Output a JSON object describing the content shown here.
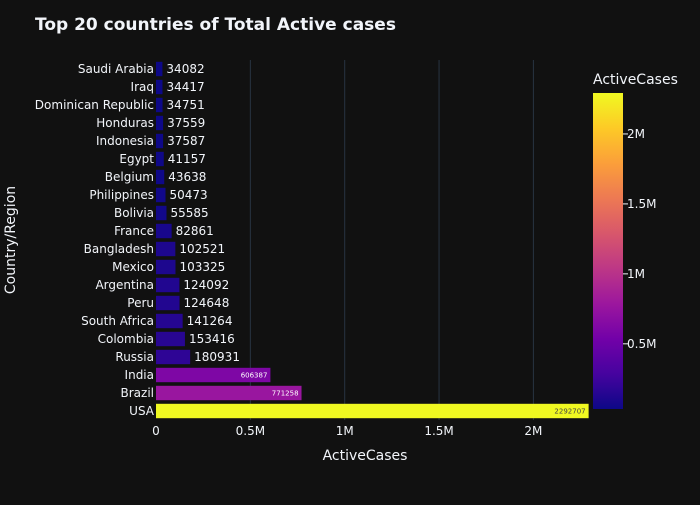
{
  "chart_data": {
    "type": "bar",
    "orientation": "horizontal",
    "title": "Top 20 countries of Total Active cases",
    "xlabel": "ActiveCases",
    "ylabel": "Country/Region",
    "xlim": [
      0,
      2300000
    ],
    "xticks": [
      {
        "value": 0,
        "label": "0"
      },
      {
        "value": 500000,
        "label": "0.5M"
      },
      {
        "value": 1000000,
        "label": "1M"
      },
      {
        "value": 1500000,
        "label": "1.5M"
      },
      {
        "value": 2000000,
        "label": "2M"
      }
    ],
    "grid": true,
    "categories": [
      "Saudi Arabia",
      "Iraq",
      "Dominican Republic",
      "Honduras",
      "Indonesia",
      "Egypt",
      "Belgium",
      "Philippines",
      "Bolivia",
      "France",
      "Bangladesh",
      "Mexico",
      "Argentina",
      "Peru",
      "South Africa",
      "Colombia",
      "Russia",
      "India",
      "Brazil",
      "USA"
    ],
    "values": [
      34082,
      34417,
      34751,
      37559,
      37587,
      41157,
      43638,
      50473,
      55585,
      82861,
      102521,
      103325,
      124092,
      124648,
      141264,
      153416,
      180931,
      606387,
      771258,
      2292707
    ],
    "data_labels": [
      "34082",
      "34417",
      "34751",
      "37559",
      "37587",
      "41157",
      "43638",
      "50473",
      "55585",
      "82861",
      "102521",
      "103325",
      "124092",
      "124648",
      "141264",
      "153416",
      "180931",
      "606387",
      "771258",
      "2292707"
    ],
    "colorscale": "Plasma",
    "colorbar": {
      "title": "ActiveCases",
      "range": [
        34082,
        2292707
      ],
      "ticks": [
        {
          "value": 500000,
          "label": "0.5M"
        },
        {
          "value": 1000000,
          "label": "1M"
        },
        {
          "value": 1500000,
          "label": "1.5M"
        },
        {
          "value": 2000000,
          "label": "2M"
        }
      ]
    }
  }
}
